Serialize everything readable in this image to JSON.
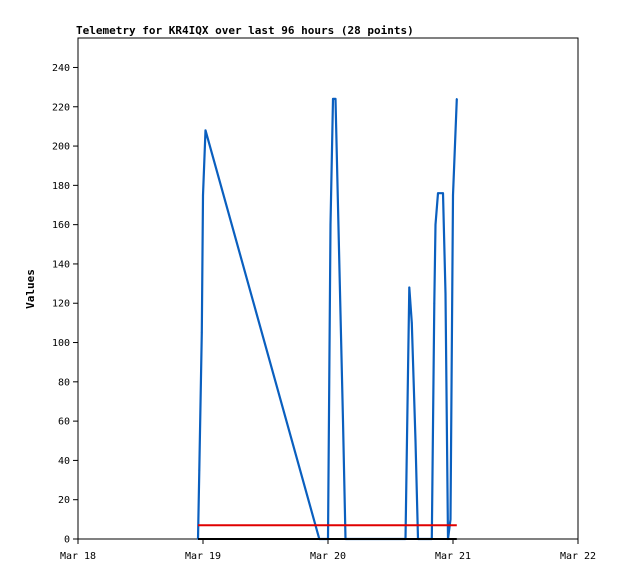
{
  "chart_data": {
    "type": "line",
    "title": "Telemetry for KR4IQX over last 96 hours (28 points)",
    "xlabel": "",
    "ylabel": "Values",
    "ylim": [
      0,
      255
    ],
    "xlim": [
      "Mar 18",
      "Mar 22"
    ],
    "x_ticks": [
      "Mar 18",
      "Mar 19",
      "Mar 20",
      "Mar 21",
      "Mar 22"
    ],
    "y_ticks": [
      0,
      20,
      40,
      60,
      80,
      100,
      120,
      140,
      160,
      180,
      200,
      220,
      240
    ],
    "grid": false,
    "x_unit": "days since Mar 18",
    "series": [
      {
        "name": "",
        "color": "#0a5fbf",
        "x": [
          0.96,
          0.97,
          0.99,
          1.0,
          1.02,
          1.93,
          2.0,
          2.02,
          2.04,
          2.06,
          2.12,
          2.14,
          2.62,
          2.64,
          2.65,
          2.67,
          2.7,
          2.72,
          2.83,
          2.85,
          2.86,
          2.88,
          2.92,
          2.94,
          2.96,
          2.98,
          3.0,
          3.03
        ],
        "values": [
          0,
          35,
          105,
          175,
          208,
          0,
          0,
          160,
          224,
          224,
          60,
          0,
          0,
          85,
          128,
          110,
          50,
          0,
          0,
          120,
          160,
          176,
          176,
          125,
          0,
          10,
          175,
          224
        ]
      },
      {
        "name": "",
        "color": "#e00000",
        "x": [
          0.96,
          3.03
        ],
        "values": [
          7,
          7
        ]
      },
      {
        "name": "",
        "color": "#000000",
        "x": [
          0.96,
          3.03
        ],
        "values": [
          0,
          0
        ]
      }
    ]
  }
}
